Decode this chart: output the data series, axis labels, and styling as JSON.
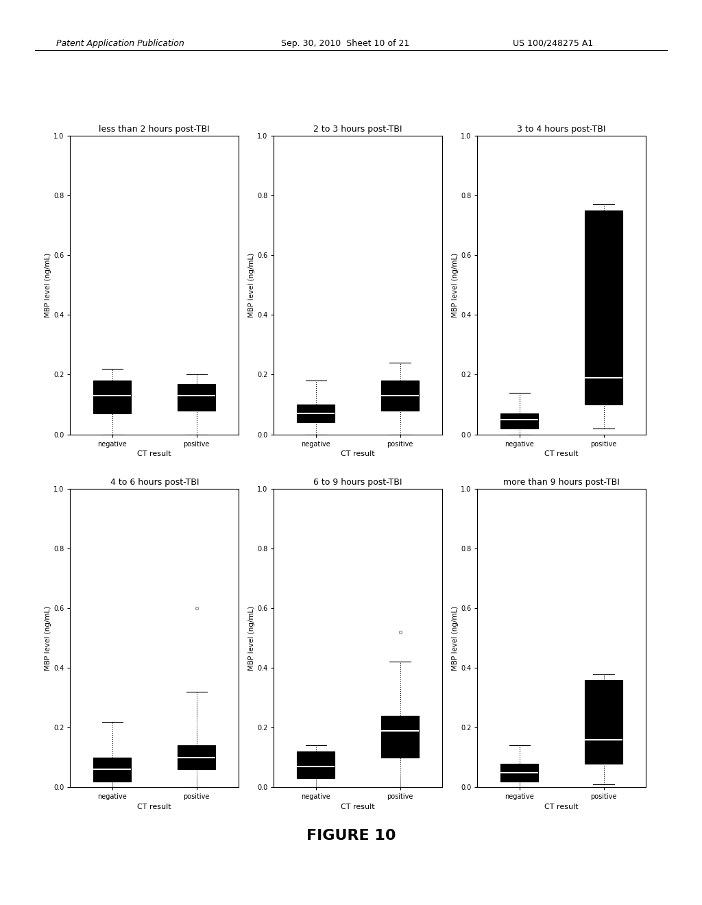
{
  "figure_title": "FIGURE 10",
  "header_left": "Patent Application Publication",
  "header_center": "Sep. 30, 2010  Sheet 10 of 21",
  "header_right": "US 100/248275 A1",
  "subplots": [
    {
      "title": "less than 2 hours post-TBI",
      "ylabel": "MBP level (ng/mL)",
      "xlabel": "CT result",
      "ylim": [
        0.0,
        1.0
      ],
      "yticks": [
        0.0,
        0.2,
        0.4,
        0.6,
        0.8,
        1.0
      ],
      "xtick_labels": [
        "negative",
        "positive"
      ],
      "boxes": [
        {
          "label": "negative",
          "whisker_low": 0.0,
          "q1": 0.07,
          "median": 0.13,
          "q3": 0.18,
          "whisker_high": 0.22,
          "outliers_high": [],
          "color": "black"
        },
        {
          "label": "positive",
          "whisker_low": 0.0,
          "q1": 0.08,
          "median": 0.13,
          "q3": 0.17,
          "whisker_high": 0.2,
          "outliers_high": [],
          "color": "black"
        }
      ]
    },
    {
      "title": "2 to 3 hours post-TBI",
      "ylabel": "MBP level (ng/mL)",
      "xlabel": "CT result",
      "ylim": [
        0.0,
        1.0
      ],
      "yticks": [
        0.0,
        0.2,
        0.4,
        0.6,
        0.8,
        1.0
      ],
      "xtick_labels": [
        "negative",
        "positive"
      ],
      "boxes": [
        {
          "label": "negative",
          "whisker_low": 0.0,
          "q1": 0.04,
          "median": 0.07,
          "q3": 0.1,
          "whisker_high": 0.18,
          "outliers_high": [],
          "color": "black"
        },
        {
          "label": "positive",
          "whisker_low": 0.0,
          "q1": 0.08,
          "median": 0.13,
          "q3": 0.18,
          "whisker_high": 0.24,
          "outliers_high": [],
          "color": "black"
        }
      ]
    },
    {
      "title": "3 to 4 hours post-TBI",
      "ylabel": "MBP level (ng/mL)",
      "xlabel": "CT result",
      "ylim": [
        0.0,
        1.0
      ],
      "yticks": [
        0.0,
        0.2,
        0.4,
        0.6,
        0.8,
        1.0
      ],
      "xtick_labels": [
        "negative",
        "positive"
      ],
      "boxes": [
        {
          "label": "negative",
          "whisker_low": 0.0,
          "q1": 0.02,
          "median": 0.05,
          "q3": 0.07,
          "whisker_high": 0.14,
          "outliers_high": [],
          "color": "black"
        },
        {
          "label": "positive",
          "whisker_low": 0.02,
          "q1": 0.1,
          "median": 0.19,
          "q3": 0.75,
          "whisker_high": 0.77,
          "outliers_high": [],
          "color": "black"
        }
      ]
    },
    {
      "title": "4 to 6 hours post-TBI",
      "ylabel": "MBP level (ng/mL)",
      "xlabel": "CT result",
      "ylim": [
        0.0,
        1.0
      ],
      "yticks": [
        0.0,
        0.2,
        0.4,
        0.6,
        0.8,
        1.0
      ],
      "xtick_labels": [
        "negative",
        "positive"
      ],
      "boxes": [
        {
          "label": "negative",
          "whisker_low": 0.0,
          "q1": 0.02,
          "median": 0.06,
          "q3": 0.1,
          "whisker_high": 0.22,
          "outliers_high": [],
          "color": "black"
        },
        {
          "label": "positive",
          "whisker_low": 0.0,
          "q1": 0.06,
          "median": 0.1,
          "q3": 0.14,
          "whisker_high": 0.32,
          "outliers_high": [
            0.6
          ],
          "color": "black"
        }
      ]
    },
    {
      "title": "6 to 9 hours post-TBI",
      "ylabel": "MBP level (ng/mL)",
      "xlabel": "CT result",
      "ylim": [
        0.0,
        1.0
      ],
      "yticks": [
        0.0,
        0.2,
        0.4,
        0.6,
        0.8,
        1.0
      ],
      "xtick_labels": [
        "negative",
        "positive"
      ],
      "boxes": [
        {
          "label": "negative",
          "whisker_low": 0.0,
          "q1": 0.03,
          "median": 0.07,
          "q3": 0.12,
          "whisker_high": 0.14,
          "outliers_high": [],
          "color": "black"
        },
        {
          "label": "positive",
          "whisker_low": 0.0,
          "q1": 0.1,
          "median": 0.19,
          "q3": 0.24,
          "whisker_high": 0.42,
          "outliers_high": [
            0.52
          ],
          "color": "black"
        }
      ]
    },
    {
      "title": "more than 9 hours post-TBI",
      "ylabel": "MBP level (ng/mL)",
      "xlabel": "CT result",
      "ylim": [
        0.0,
        1.0
      ],
      "yticks": [
        0.0,
        0.2,
        0.4,
        0.6,
        0.8,
        1.0
      ],
      "xtick_labels": [
        "negative",
        "positive"
      ],
      "boxes": [
        {
          "label": "negative",
          "whisker_low": 0.0,
          "q1": 0.02,
          "median": 0.05,
          "q3": 0.08,
          "whisker_high": 0.14,
          "outliers_high": [],
          "color": "black"
        },
        {
          "label": "positive",
          "whisker_low": 0.01,
          "q1": 0.08,
          "median": 0.16,
          "q3": 0.36,
          "whisker_high": 0.38,
          "outliers_high": [],
          "color": "black"
        }
      ]
    }
  ],
  "background_color": "white",
  "fig_background": "white"
}
